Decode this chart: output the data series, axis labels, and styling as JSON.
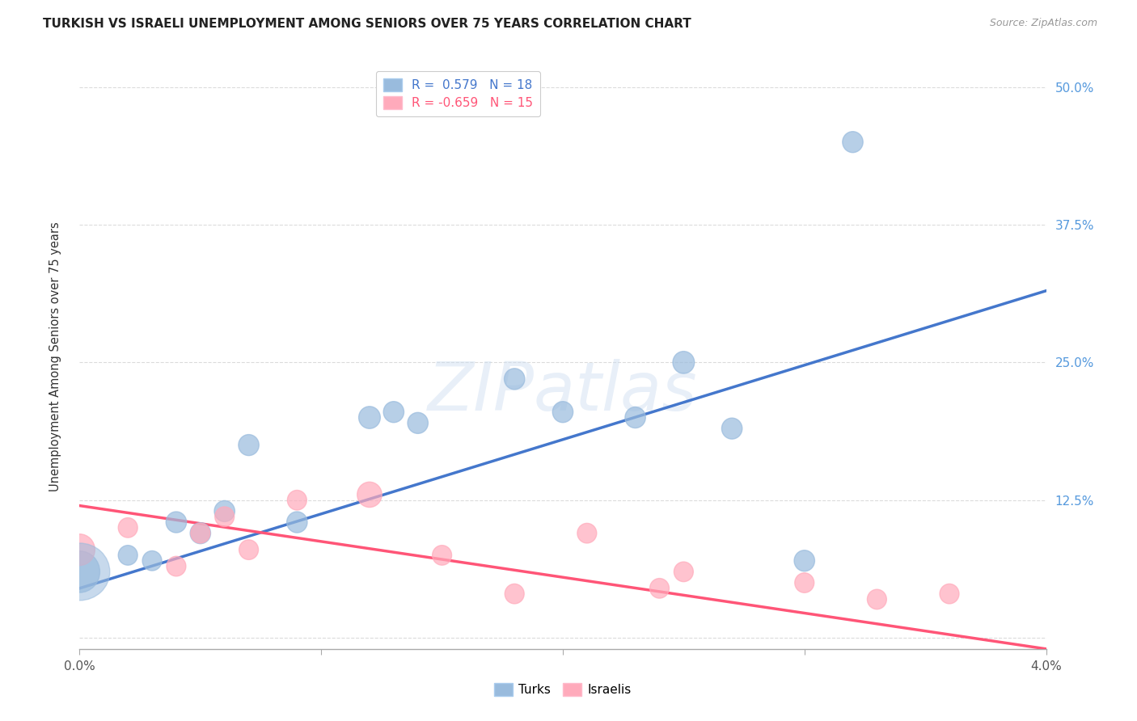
{
  "title": "TURKISH VS ISRAELI UNEMPLOYMENT AMONG SENIORS OVER 75 YEARS CORRELATION CHART",
  "source": "Source: ZipAtlas.com",
  "ylabel": "Unemployment Among Seniors over 75 years",
  "legend_turks_R": "R =  0.579",
  "legend_turks_N": "N = 18",
  "legend_israelis_R": "R = -0.659",
  "legend_israelis_N": "N = 15",
  "watermark": "ZIPatlas",
  "turks_x": [
    0.0,
    0.002,
    0.003,
    0.004,
    0.005,
    0.006,
    0.007,
    0.009,
    0.012,
    0.013,
    0.014,
    0.018,
    0.02,
    0.023,
    0.025,
    0.027,
    0.03,
    0.032
  ],
  "turks_y": [
    0.06,
    0.075,
    0.07,
    0.105,
    0.095,
    0.115,
    0.175,
    0.105,
    0.2,
    0.205,
    0.195,
    0.235,
    0.205,
    0.2,
    0.25,
    0.19,
    0.07,
    0.45
  ],
  "turks_size": [
    350,
    80,
    80,
    90,
    90,
    90,
    90,
    90,
    100,
    90,
    90,
    90,
    90,
    90,
    100,
    90,
    90,
    90
  ],
  "israelis_x": [
    0.0,
    0.002,
    0.004,
    0.005,
    0.006,
    0.007,
    0.009,
    0.012,
    0.015,
    0.018,
    0.021,
    0.024,
    0.025,
    0.03,
    0.033,
    0.036
  ],
  "israelis_y": [
    0.08,
    0.1,
    0.065,
    0.095,
    0.11,
    0.08,
    0.125,
    0.13,
    0.075,
    0.04,
    0.095,
    0.045,
    0.06,
    0.05,
    0.035,
    0.04
  ],
  "israelis_size": [
    200,
    80,
    80,
    80,
    80,
    80,
    80,
    130,
    80,
    80,
    80,
    80,
    80,
    80,
    80,
    80
  ],
  "blue_color": "#99BBDD",
  "pink_color": "#FFAABB",
  "blue_line_color": "#4477CC",
  "pink_line_color": "#FF5577",
  "background_color": "#FFFFFF",
  "grid_color": "#CCCCCC",
  "xlim": [
    0.0,
    0.04
  ],
  "ylim": [
    -0.01,
    0.52
  ],
  "yticks": [
    0.0,
    0.125,
    0.25,
    0.375,
    0.5
  ],
  "ytick_labels": [
    "",
    "12.5%",
    "25.0%",
    "37.5%",
    "50.0%"
  ],
  "xticks": [
    0.0,
    0.01,
    0.02,
    0.03,
    0.04
  ],
  "xtick_labels": [
    "0.0%",
    "",
    "",
    "",
    "4.0%"
  ],
  "blue_line_x0": 0.0,
  "blue_line_y0": 0.045,
  "blue_line_x1": 0.04,
  "blue_line_y1": 0.315,
  "pink_line_x0": 0.0,
  "pink_line_y0": 0.12,
  "pink_line_x1": 0.04,
  "pink_line_y1": -0.01
}
